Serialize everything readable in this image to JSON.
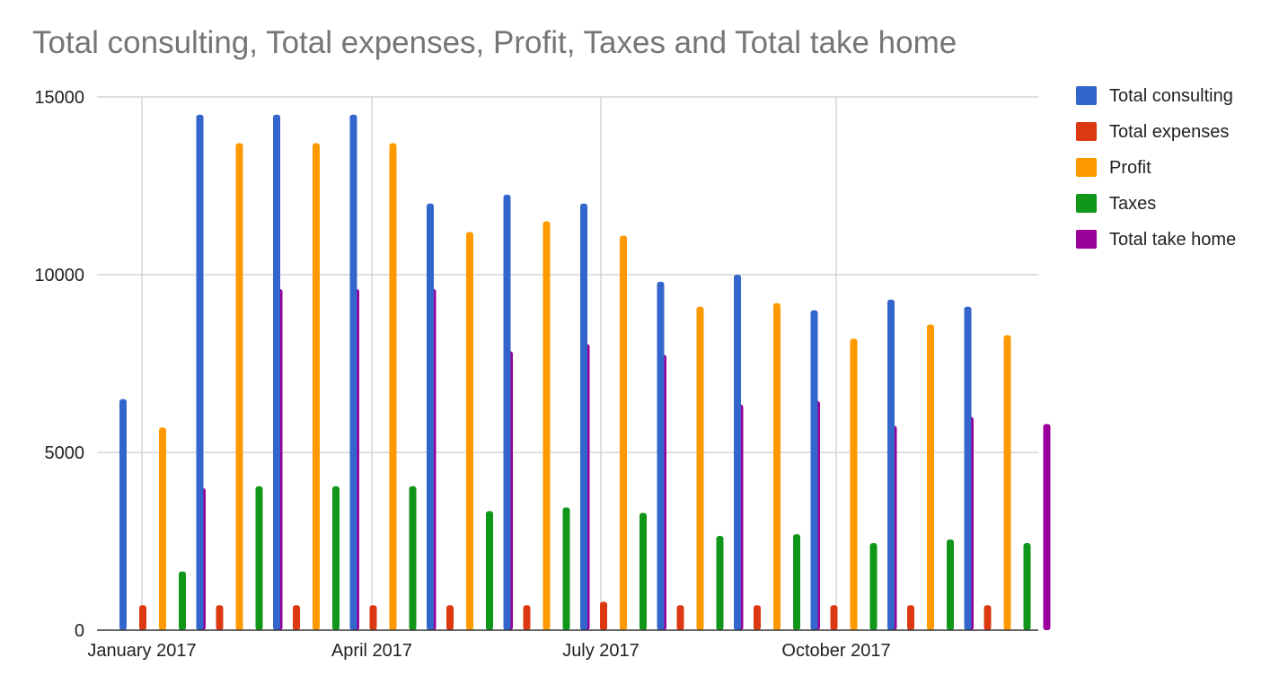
{
  "chart_data": {
    "type": "bar",
    "title": "Total consulting, Total expenses, Profit, Taxes and Total take home",
    "xlabel": "",
    "ylabel": "",
    "ylim": [
      0,
      15000
    ],
    "yticks": [
      "0",
      "5000",
      "10000",
      "15000"
    ],
    "x_tick_labels": [
      {
        "label": "January 2017",
        "month_index": 0
      },
      {
        "label": "April 2017",
        "month_index": 3
      },
      {
        "label": "July 2017",
        "month_index": 6
      },
      {
        "label": "October 2017",
        "month_index": 9
      }
    ],
    "categories": [
      "2017-01",
      "2017-02",
      "2017-03",
      "2017-04",
      "2017-05",
      "2017-06",
      "2017-07",
      "2017-08",
      "2017-09",
      "2017-10",
      "2017-11",
      "2017-12"
    ],
    "series": [
      {
        "name": "Total consulting",
        "color": "#3366cc",
        "values": [
          6500,
          14500,
          14500,
          14500,
          12000,
          12250,
          12000,
          9800,
          10000,
          9000,
          9300,
          9100
        ]
      },
      {
        "name": "Total expenses",
        "color": "#dc3912",
        "values": [
          700,
          700,
          700,
          700,
          700,
          700,
          800,
          700,
          700,
          700,
          700,
          700
        ]
      },
      {
        "name": "Profit",
        "color": "#ff9900",
        "values": [
          5700,
          13700,
          13700,
          13700,
          11200,
          11500,
          11100,
          9100,
          9200,
          8200,
          8600,
          8300
        ]
      },
      {
        "name": "Taxes",
        "color": "#109618",
        "values": [
          1650,
          4050,
          4050,
          4050,
          3350,
          3450,
          3300,
          2650,
          2700,
          2450,
          2550,
          2450
        ]
      },
      {
        "name": "Total take home",
        "color": "#990099",
        "values": [
          4000,
          9600,
          9600,
          9600,
          7850,
          8050,
          7750,
          6350,
          6450,
          5750,
          6000,
          5800
        ]
      }
    ],
    "legend_position": "right",
    "grid": true
  }
}
